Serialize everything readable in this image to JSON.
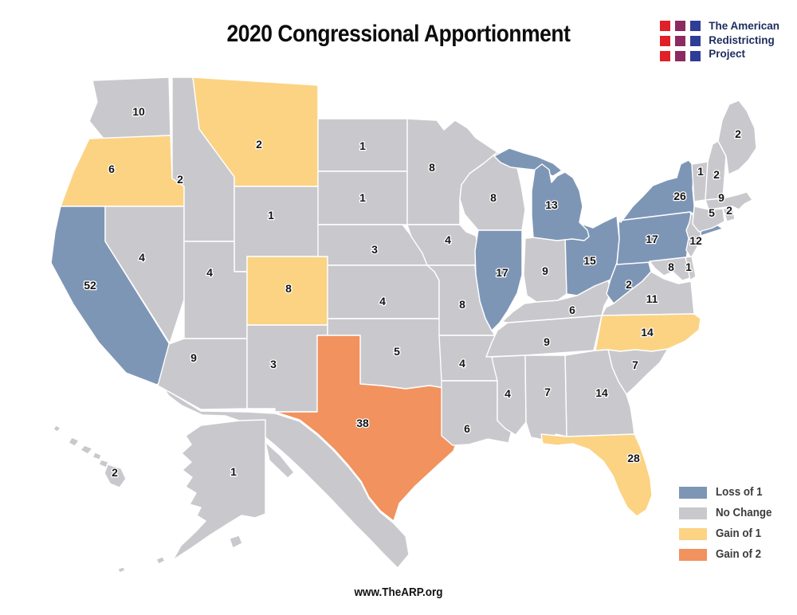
{
  "title": "2020 Congressional Apportionment",
  "logo": {
    "lines": [
      "The American",
      "Redistricting",
      "Project"
    ],
    "square_colors": [
      "#e02127",
      "#8d2a62",
      "#2e3d96"
    ],
    "text_color": "#1d2c5e"
  },
  "footer": {
    "url": "www.TheARP.org"
  },
  "legend": {
    "items": [
      {
        "key": "loss1",
        "label": "Loss of 1",
        "color": "#7e96b6"
      },
      {
        "key": "none",
        "label": "No Change",
        "color": "#c9c9cd"
      },
      {
        "key": "gain1",
        "label": "Gain of 1",
        "color": "#fbd383"
      },
      {
        "key": "gain2",
        "label": "Gain of 2",
        "color": "#f1925f"
      }
    ]
  },
  "map": {
    "border_color": "#ffffff",
    "label_color": "#141414",
    "label_outline": "#ffffff",
    "other_land": [
      {
        "name": "mexico",
        "paths": [
          "M205,487 L252,516 L311,517 L345,519 L376,529 L399,547 L419,566 L437,586 L453,606 L463,626 L477,643 L494,657 L509,673 L513,696 L499,713 L481,695 L463,676 L445,658 L430,642 L415,626 L398,609 L380,591 L362,574 L344,558 L326,543 L306,530 L283,522 L254,521 L228,509 L212,497 Z"
        ]
      }
    ],
    "states": [
      {
        "id": "WA",
        "name": "Washington",
        "seats": 10,
        "change": "none",
        "label": [
          174,
          140
        ],
        "paths": [
          "M116,101 L212,97 L214,170 L130,174 L112,152 L122,128 Z"
        ]
      },
      {
        "id": "OR",
        "name": "Oregon",
        "seats": 6,
        "change": "gain1",
        "label": [
          140,
          212
        ],
        "paths": [
          "M112,174 L214,170 L216,224 L231,234 L231,259 L76,259 L92,216 Z"
        ]
      },
      {
        "id": "CA",
        "name": "California",
        "seats": 52,
        "change": "loss1",
        "label": [
          113,
          358
        ],
        "paths": [
          "M76,259 L132,259 L132,303 L212,431 L212,468 L197,483 L158,468 L124,430 L92,382 L64,330 L69,291 Z"
        ]
      },
      {
        "id": "NV",
        "name": "Nevada",
        "seats": 4,
        "change": "none",
        "label": [
          178,
          323
        ],
        "paths": [
          "M132,259 L231,259 L231,376 L213,431 L132,303 Z"
        ]
      },
      {
        "id": "ID",
        "name": "Idaho",
        "seats": 2,
        "change": "none",
        "label": [
          226,
          225
        ],
        "paths": [
          "M216,97 L242,97 L250,162 L294,222 L294,303 L231,303 L231,234 L216,224 Z"
        ]
      },
      {
        "id": "MT",
        "name": "Montana",
        "seats": 2,
        "change": "gain1",
        "label": [
          325,
          181
        ],
        "paths": [
          "M242,97 L399,107 L399,234 L294,234 L294,222 L250,162 Z"
        ]
      },
      {
        "id": "WY",
        "name": "Wyoming",
        "seats": 1,
        "change": "none",
        "label": [
          340,
          270
        ],
        "paths": [
          "M294,234 L411,234 L411,322 L310,322 L310,341 L294,341 Z"
        ]
      },
      {
        "id": "UT",
        "name": "Utah",
        "seats": 4,
        "change": "none",
        "label": [
          263,
          342
        ],
        "paths": [
          "M231,303 L294,303 L294,341 L310,341 L310,425 L231,425 Z"
        ]
      },
      {
        "id": "CO",
        "name": "Colorado",
        "seats": 8,
        "change": "gain1",
        "label": [
          362,
          362
        ],
        "paths": [
          "M310,322 L411,322 L411,408 L310,408 Z"
        ]
      },
      {
        "id": "AZ",
        "name": "Arizona",
        "seats": 9,
        "change": "none",
        "label": [
          243,
          449
        ],
        "paths": [
          "M231,425 L310,425 L310,513 L252,514 L198,484 L212,432 Z"
        ]
      },
      {
        "id": "NM",
        "name": "New Mexico",
        "seats": 3,
        "change": "none",
        "label": [
          343,
          457
        ],
        "paths": [
          "M310,408 L411,408 L411,421 L398,421 L398,517 L345,517 L345,513 L310,513 Z"
        ]
      },
      {
        "id": "ND",
        "name": "North Dakota",
        "seats": 1,
        "change": "none",
        "label": [
          455,
          183
        ],
        "paths": [
          "M399,149 L511,149 L511,215 L399,215 Z"
        ]
      },
      {
        "id": "SD",
        "name": "South Dakota",
        "seats": 1,
        "change": "none",
        "label": [
          455,
          248
        ],
        "paths": [
          "M399,215 L511,215 L511,282 L399,282 Z"
        ]
      },
      {
        "id": "NE",
        "name": "Nebraska",
        "seats": 3,
        "change": "none",
        "label": [
          470,
          313
        ],
        "paths": [
          "M399,282 L505,282 L516,296 L530,309 L536,320 L536,333 L411,333 L411,322 L399,322 Z"
        ]
      },
      {
        "id": "KS",
        "name": "Kansas",
        "seats": 4,
        "change": "none",
        "label": [
          480,
          378
        ],
        "paths": [
          "M411,333 L536,333 L545,341 L551,352 L551,400 L411,400 Z"
        ]
      },
      {
        "id": "OK",
        "name": "Oklahoma",
        "seats": 5,
        "change": "none",
        "label": [
          498,
          441
        ],
        "paths": [
          "M411,400 L551,400 L557,410 L557,487 L539,484 L509,488 L478,484 L452,482 L452,421 L411,421 Z"
        ]
      },
      {
        "id": "TX",
        "name": "Texas",
        "seats": 38,
        "change": "gain2",
        "label": [
          455,
          531
        ],
        "paths": [
          "M398,421 L452,421 L452,482 L478,484 L509,488 L539,484 L557,487 L559,512 L567,532 L575,549 L569,566 L547,586 L521,610 L501,632 L494,654 L477,641 L463,624 L453,604 L437,584 L419,564 L399,545 L376,527 L345,517 L398,517 Z"
        ]
      },
      {
        "id": "MN",
        "name": "Minnesota",
        "seats": 8,
        "change": "none",
        "label": [
          542,
          210
        ],
        "paths": [
          "M511,149 L548,151 L557,163 L571,151 L587,161 L597,173 L624,191 L607,205 L589,218 L579,232 L577,250 L577,282 L511,282 Z"
        ]
      },
      {
        "id": "IA",
        "name": "Iowa",
        "seats": 4,
        "change": "none",
        "label": [
          562,
          301
        ],
        "paths": [
          "M511,282 L577,282 L585,291 L597,296 L600,311 L596,333 L536,333 L530,318 L516,297 Z"
        ]
      },
      {
        "id": "WI",
        "name": "Wisconsin",
        "seats": 8,
        "change": "none",
        "label": [
          619,
          248
        ],
        "paths": [
          "M577,250 L579,232 L589,218 L607,205 L624,191 L637,197 L649,211 L654,233 L659,263 L655,289 L600,289 L583,269 Z"
        ]
      },
      {
        "id": "IL",
        "name": "Illinois",
        "seats": 17,
        "change": "loss1",
        "label": [
          630,
          342
        ],
        "paths": [
          "M600,289 L655,289 L655,345 L649,368 L637,390 L627,405 L617,415 L609,400 L602,378 L597,345 L596,315 Z"
        ]
      },
      {
        "id": "MO",
        "name": "Missouri",
        "seats": 8,
        "change": "none",
        "label": [
          580,
          382
        ],
        "paths": [
          "M536,333 L596,333 L597,345 L602,378 L609,400 L617,415 L621,421 L551,421 L551,352 L545,341 Z"
        ]
      },
      {
        "id": "AR",
        "name": "Arkansas",
        "seats": 4,
        "change": "none",
        "label": [
          580,
          456
        ],
        "paths": [
          "M551,421 L621,421 L626,430 L624,478 L554,478 Z"
        ]
      },
      {
        "id": "LA",
        "name": "Louisiana",
        "seats": 6,
        "change": "none",
        "label": [
          586,
          538
        ],
        "paths": [
          "M554,478 L624,478 L624,528 L643,537 L638,556 L612,551 L588,558 L568,559 L554,547 Z"
        ]
      },
      {
        "id": "MS",
        "name": "Mississippi",
        "seats": 4,
        "change": "none",
        "label": [
          637,
          494
        ],
        "paths": [
          "M617,448 L659,446 L660,530 L647,546 L634,538 L624,528 L624,478 L620,462 Z"
        ]
      },
      {
        "id": "TN",
        "name": "Tennessee",
        "seats": 9,
        "change": "none",
        "label": [
          686,
          429
        ],
        "paths": [
          "M610,448 L617,430 L624,415 L637,405 L755,396 L745,440 L659,446 Z"
        ]
      },
      {
        "id": "KY",
        "name": "Kentucky",
        "seats": 6,
        "change": "none",
        "label": [
          718,
          389
        ],
        "paths": [
          "M630,404 L644,391 L658,381 L673,379 L700,377 L724,371 L746,359 L762,350 L768,366 L758,384 L755,396 L637,405 Z"
        ]
      },
      {
        "id": "IN",
        "name": "Indiana",
        "seats": 9,
        "change": "none",
        "label": [
          684,
          340
        ],
        "paths": [
          "M659,299 L709,295 L711,369 L700,377 L673,379 L661,371 L657,345 Z"
        ]
      },
      {
        "id": "OH",
        "name": "Ohio",
        "seats": 15,
        "change": "loss1",
        "label": [
          740,
          327
        ],
        "paths": [
          "M709,295 L717,289 L729,281 L744,286 L757,279 L774,271 L777,300 L774,330 L766,351 L746,359 L724,371 L711,369 Z"
        ]
      },
      {
        "id": "WV",
        "name": "West Virginia",
        "seats": 2,
        "change": "loss1",
        "label": [
          789,
          357
        ],
        "paths": [
          "M774,330 L813,326 L817,341 L806,353 L793,363 L780,373 L770,381 L761,369 L766,351 Z"
        ]
      },
      {
        "id": "VA",
        "name": "Virginia",
        "seats": 11,
        "change": "none",
        "label": [
          818,
          375
        ],
        "paths": [
          "M770,381 L780,373 L793,363 L806,353 L817,341 L833,350 L851,356 L867,353 L871,394 L755,396 L760,386 Z"
        ]
      },
      {
        "id": "NC",
        "name": "North Carolina",
        "seats": 14,
        "change": "gain1",
        "label": [
          812,
          417
        ],
        "paths": [
          "M755,396 L871,394 L879,400 L877,414 L860,428 L838,438 L818,441 L797,439 L778,441 L763,439 L747,440 L751,419 Z"
        ]
      },
      {
        "id": "SC",
        "name": "South Carolina",
        "seats": 7,
        "change": "none",
        "label": [
          797,
          458
        ],
        "paths": [
          "M763,439 L778,441 L797,439 L818,441 L838,438 L828,455 L812,470 L797,485 L786,495 L776,479 L768,461 Z"
        ]
      },
      {
        "id": "GA",
        "name": "Georgia",
        "seats": 14,
        "change": "none",
        "label": [
          755,
          493
        ],
        "paths": [
          "M709,446 L747,440 L763,439 L768,461 L776,479 L786,495 L791,511 L794,530 L796,545 L711,548 Z"
        ]
      },
      {
        "id": "AL",
        "name": "Alabama",
        "seats": 7,
        "change": "none",
        "label": [
          687,
          492
        ],
        "paths": [
          "M659,446 L709,446 L711,548 L698,545 L687,553 L666,549 L660,530 Z"
        ]
      },
      {
        "id": "FL",
        "name": "Florida",
        "seats": 28,
        "change": "gain1",
        "label": [
          795,
          575
        ],
        "paths": [
          "M679,545 L711,548 L796,545 L803,560 L810,580 L816,601 L818,622 L811,640 L799,648 L787,637 L777,617 L769,597 L757,579 L739,564 L719,557 L699,559 L681,557 Z"
        ]
      },
      {
        "id": "MI",
        "name": "Michigan",
        "seats": 13,
        "change": "loss1",
        "label": [
          692,
          257
        ],
        "paths": [
          "M620,196 L639,186 L657,192 L675,197 L694,205 L705,214 L694,221 L677,214 L659,212 L641,210 L628,204 Z",
          "M671,213 L680,206 L689,213 L692,229 L699,221 L709,216 L719,223 L727,239 L731,259 L727,279 L737,289 L739,297 L733,302 L718,300 L699,302 L684,300 L669,298 L667,270 L667,240 Z"
        ]
      },
      {
        "id": "PA",
        "name": "Pennsylvania",
        "seats": 17,
        "change": "loss1",
        "label": [
          818,
          300
        ],
        "paths": [
          "M776,277 L866,266 L871,289 L863,311 L861,326 L774,332 L777,300 Z"
        ]
      },
      {
        "id": "NY",
        "name": "New York",
        "seats": 26,
        "change": "loss1",
        "label": [
          853,
          246
        ],
        "paths": [
          "M779,279 L794,259 L807,246 L819,233 L837,226 L849,223 L854,206 L864,201 L871,209 L869,236 L871,258 L875,272 L866,266 L776,277 Z",
          "M874,289 L899,282 L907,287 L879,296 Z"
        ]
      },
      {
        "id": "NJ",
        "name": "New Jersey",
        "seats": 12,
        "change": "none",
        "label": [
          873,
          302
        ],
        "paths": [
          "M867,268 L876,273 L881,279 L879,295 L875,310 L867,324 L861,314 L864,299 L861,289 L865,279 Z"
        ]
      },
      {
        "id": "MD",
        "name": "Maryland",
        "seats": 8,
        "change": "none",
        "label": [
          842,
          335
        ],
        "paths": [
          "M815,328 L860,323 L862,331 L866,349 L856,352 L844,341 L833,346 L822,337 Z"
        ]
      },
      {
        "id": "DE",
        "name": "Delaware",
        "seats": 1,
        "change": "none",
        "label": [
          864,
          335
        ],
        "paths": [
          "M860,323 L868,322 L873,347 L866,352 L862,331 Z"
        ]
      },
      {
        "id": "VT",
        "name": "Vermont",
        "seats": 1,
        "change": "none",
        "label": [
          879,
          215
        ],
        "paths": [
          "M868,206 L888,203 L885,251 L871,253 Z"
        ]
      },
      {
        "id": "NH",
        "name": "New Hampshire",
        "seats": 2,
        "change": "none",
        "label": [
          899,
          219
        ],
        "paths": [
          "M888,203 L894,181 L901,177 L911,196 L907,249 L885,251 Z"
        ]
      },
      {
        "id": "ME",
        "name": "Maine",
        "seats": 2,
        "change": "none",
        "label": [
          926,
          168
        ],
        "paths": [
          "M901,177 L906,151 L915,131 L927,126 L937,139 L947,161 L949,186 L939,201 L927,213 L914,219 L911,196 Z"
        ]
      },
      {
        "id": "MA",
        "name": "Massachusetts",
        "seats": 9,
        "change": "none",
        "label": [
          905,
          248
        ],
        "paths": [
          "M885,251 L907,249 L924,245 L937,241 L944,251 L934,256 L927,263 L919,259 L889,263 Z"
        ]
      },
      {
        "id": "RI",
        "name": "Rhode Island",
        "seats": 2,
        "change": "none",
        "label": [
          915,
          264
        ],
        "paths": [
          "M907,262 L919,259 L922,275 L912,278 Z"
        ]
      },
      {
        "id": "CT",
        "name": "Connecticut",
        "seats": 5,
        "change": "none",
        "label": [
          893,
          267
        ],
        "paths": [
          "M871,259 L889,263 L907,262 L909,278 L894,286 L877,291 L869,281 Z"
        ]
      },
      {
        "id": "AK",
        "name": "Alaska",
        "seats": 1,
        "change": "none",
        "label": [
          293,
          592
        ],
        "paths": [
          "M252,534 L300,528 L333,527 L333,645 L320,650 L303,647 L285,658 L263,672 L240,688 L217,703 L227,685 L246,667 L258,654 L247,647 L252,637 L238,633 L246,619 L233,611 L241,599 L229,590 L240,580 L228,569 L240,558 L233,547 Z",
          "M333,555 L352,572 L369,593 L361,600 L338,578 Z",
          "M288,676 L300,672 L304,682 L292,688 Z",
          "M196,702 L204,699 L207,704 L199,708 Z",
          "M148,714 L155,712 L157,716 L150,719 Z"
        ]
      },
      {
        "id": "HI",
        "name": "Hawaii",
        "seats": 2,
        "change": "none",
        "label": [
          144,
          593
        ],
        "paths": [
          "M70,534 L76,537 L72,542 L67,539 Z",
          "M90,549 L99,553 L94,560 L86,556 Z",
          "M106,559 L116,563 L110,570 L101,565 Z",
          "M119,568 L127,571 L125,577 L116,574 Z",
          "M127,577 L136,580 L133,587 L124,583 Z",
          "M135,583 L152,588 L158,601 L150,612 L138,607 L131,594 Z"
        ]
      }
    ]
  }
}
